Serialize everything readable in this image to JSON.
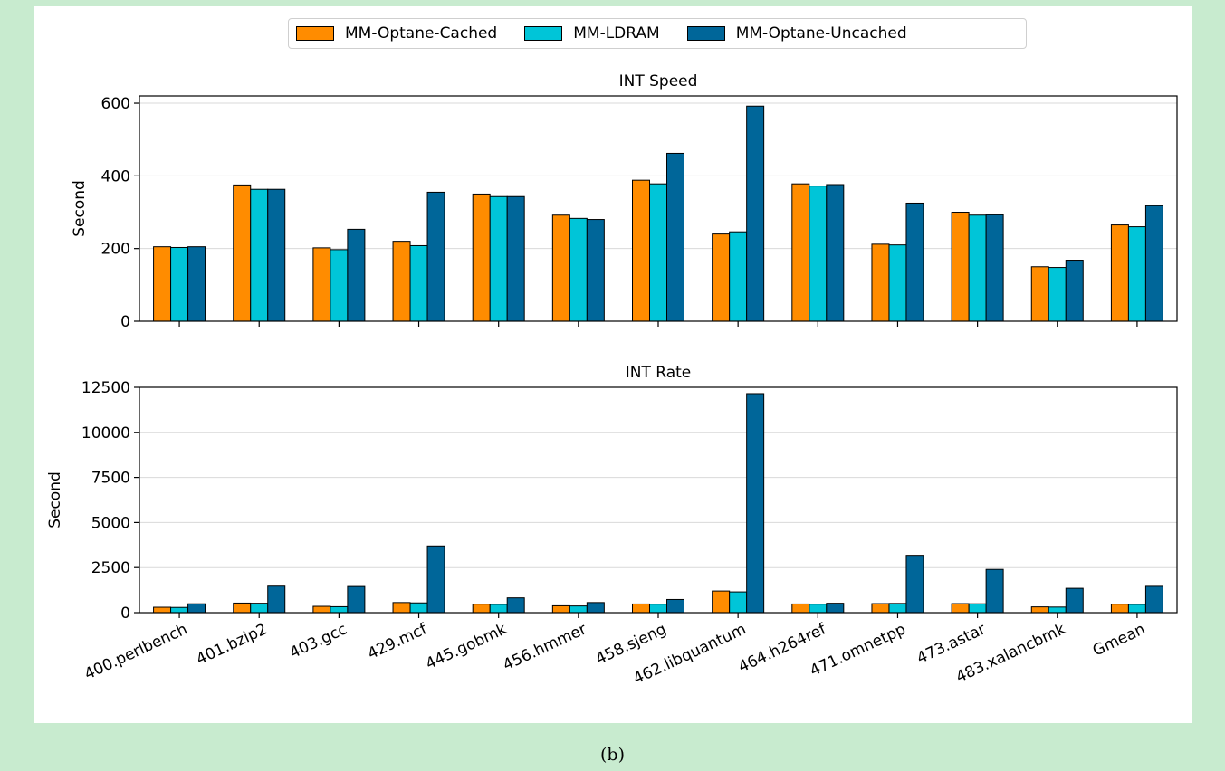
{
  "caption": "(b)",
  "colors": {
    "MM-Optane-Cached": "#ff8c00",
    "MM-LDRAM": "#00c5d8",
    "MM-Optane-Uncached": "#006699",
    "grid": "#d9d9d9"
  },
  "legend": {
    "placement": "top-center",
    "items": [
      {
        "label": "MM-Optane-Cached",
        "color": "#ff8c00"
      },
      {
        "label": "MM-LDRAM",
        "color": "#00c5d8"
      },
      {
        "label": "MM-Optane-Uncached",
        "color": "#006699"
      }
    ]
  },
  "chart_data": [
    {
      "type": "bar",
      "title": "INT Speed",
      "ylabel": "Second",
      "ylim": [
        0,
        620
      ],
      "yticks": [
        0,
        200,
        400,
        600
      ],
      "grid": "horizontal",
      "categories": [
        "400.perlbench",
        "401.bzip2",
        "403.gcc",
        "429.mcf",
        "445.gobmk",
        "456.hmmer",
        "458.sjeng",
        "462.libquantum",
        "464.h264ref",
        "471.omnetpp",
        "473.astar",
        "483.xalancbmk",
        "Gmean"
      ],
      "series": [
        {
          "name": "MM-Optane-Cached",
          "values": [
            205,
            375,
            202,
            220,
            350,
            292,
            388,
            240,
            378,
            212,
            300,
            150,
            265
          ]
        },
        {
          "name": "MM-LDRAM",
          "values": [
            203,
            363,
            197,
            208,
            343,
            283,
            378,
            246,
            372,
            210,
            292,
            148,
            260
          ]
        },
        {
          "name": "MM-Optane-Uncached",
          "values": [
            205,
            363,
            253,
            355,
            343,
            280,
            462,
            592,
            376,
            325,
            293,
            168,
            318
          ]
        }
      ]
    },
    {
      "type": "bar",
      "title": "INT Rate",
      "ylabel": "Second",
      "ylim": [
        0,
        12500
      ],
      "yticks": [
        0,
        2500,
        5000,
        7500,
        10000,
        12500
      ],
      "grid": "horizontal",
      "categories": [
        "400.perlbench",
        "401.bzip2",
        "403.gcc",
        "429.mcf",
        "445.gobmk",
        "456.hmmer",
        "458.sjeng",
        "462.libquantum",
        "464.h264ref",
        "471.omnetpp",
        "473.astar",
        "483.xalancbmk",
        "Gmean"
      ],
      "series": [
        {
          "name": "MM-Optane-Cached",
          "values": [
            300,
            530,
            350,
            560,
            470,
            380,
            480,
            1200,
            480,
            500,
            500,
            320,
            470
          ]
        },
        {
          "name": "MM-LDRAM",
          "values": [
            290,
            520,
            330,
            540,
            460,
            370,
            470,
            1150,
            470,
            510,
            490,
            310,
            460
          ]
        },
        {
          "name": "MM-Optane-Uncached",
          "values": [
            490,
            1470,
            1450,
            3700,
            820,
            560,
            730,
            12150,
            520,
            3180,
            2400,
            1350,
            1460
          ]
        }
      ]
    }
  ]
}
